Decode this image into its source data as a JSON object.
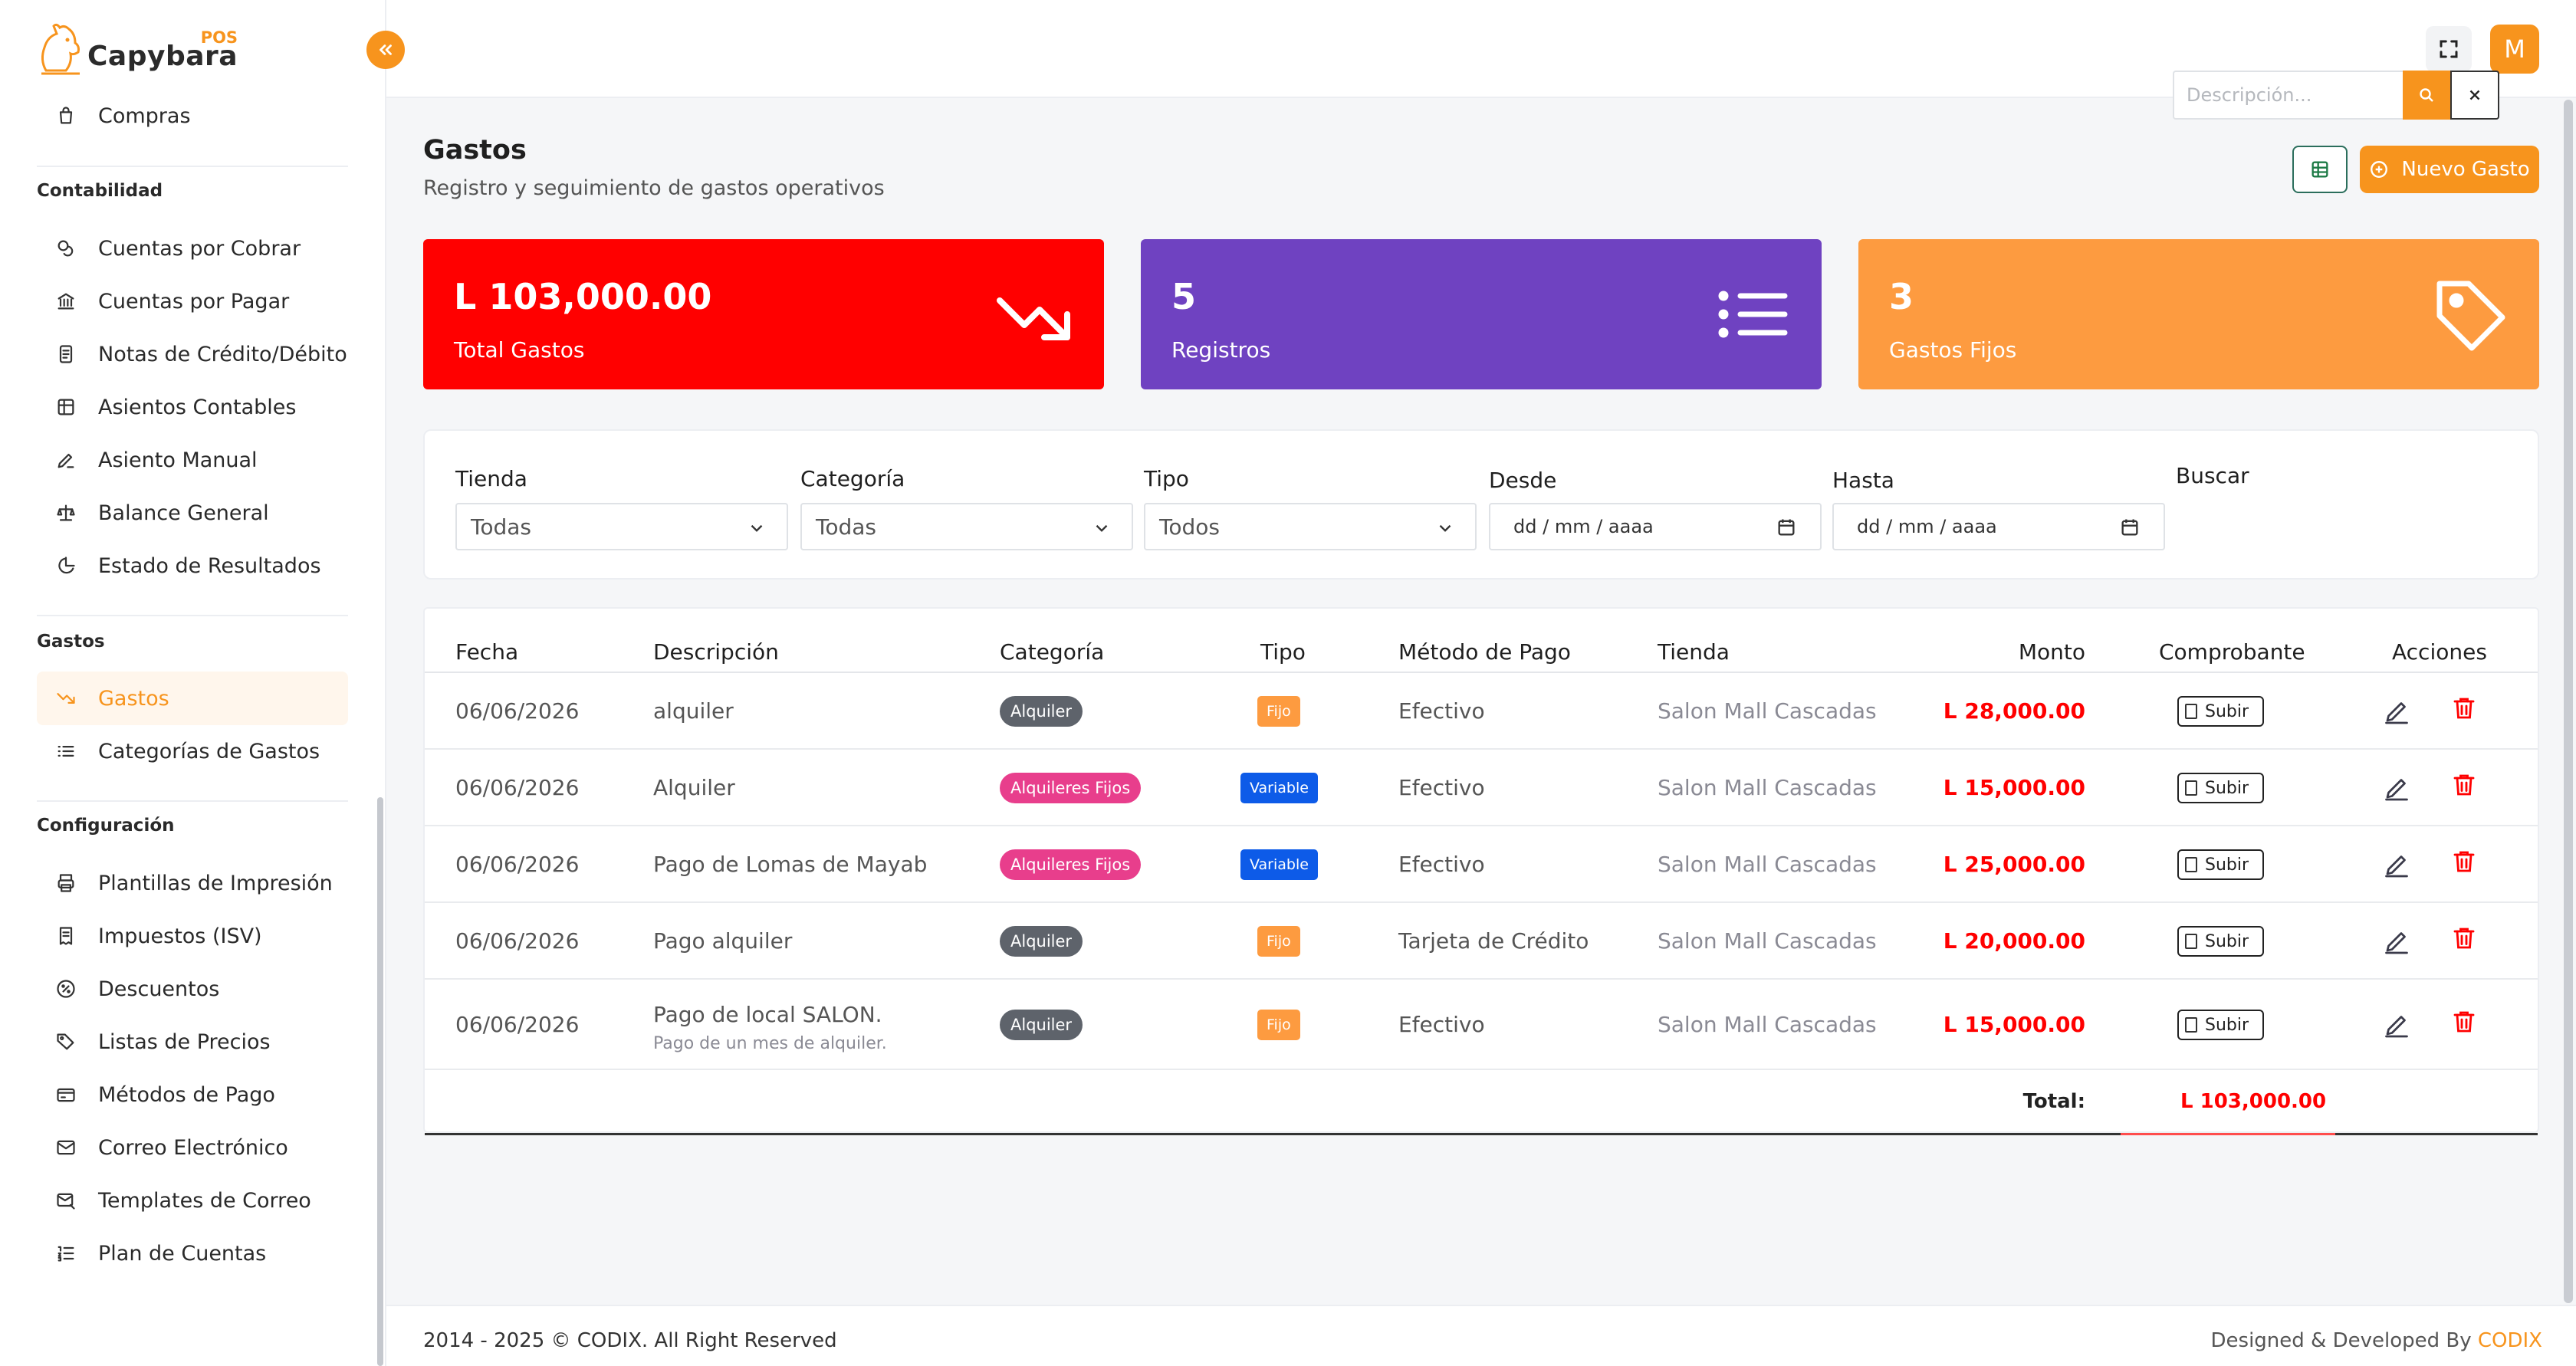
{
  "brand": {
    "pos": "POS",
    "name": "Capybara"
  },
  "sidebar": {
    "items_top": [
      {
        "label": "Compras",
        "icon": "shopping-bag-icon"
      }
    ],
    "sections": [
      {
        "title": "Contabilidad",
        "items": [
          {
            "label": "Cuentas por Cobrar",
            "icon": "coins-icon"
          },
          {
            "label": "Cuentas por Pagar",
            "icon": "bank-icon"
          },
          {
            "label": "Notas de Crédito/Débito",
            "icon": "document-icon"
          },
          {
            "label": "Asientos Contables",
            "icon": "table-icon"
          },
          {
            "label": "Asiento Manual",
            "icon": "pen-icon"
          },
          {
            "label": "Balance General",
            "icon": "scale-icon"
          },
          {
            "label": "Estado de Resultados",
            "icon": "pie-chart-icon"
          }
        ]
      },
      {
        "title": "Gastos",
        "items": [
          {
            "label": "Gastos",
            "icon": "trending-down-icon",
            "active": true
          },
          {
            "label": "Categorías de Gastos",
            "icon": "list-icon"
          }
        ]
      },
      {
        "title": "Configuración",
        "items": [
          {
            "label": "Plantillas de Impresión",
            "icon": "printer-icon"
          },
          {
            "label": "Impuestos (ISV)",
            "icon": "receipt-icon"
          },
          {
            "label": "Descuentos",
            "icon": "percent-icon"
          },
          {
            "label": "Listas de Precios",
            "icon": "tags-icon"
          },
          {
            "label": "Métodos de Pago",
            "icon": "credit-card-icon"
          },
          {
            "label": "Correo Electrónico",
            "icon": "mail-icon"
          },
          {
            "label": "Templates de Correo",
            "icon": "mail-template-icon"
          },
          {
            "label": "Plan de Cuentas",
            "icon": "list-ordered-icon"
          }
        ]
      }
    ]
  },
  "topbar": {
    "avatar_initial": "M"
  },
  "page": {
    "title": "Gastos",
    "subtitle": "Registro y seguimiento de gastos operativos",
    "new_button": "Nuevo Gasto"
  },
  "stats": [
    {
      "value": "L 103,000.00",
      "label": "Total Gastos",
      "color": "#ff0000",
      "icon": "trending-down-icon"
    },
    {
      "value": "5",
      "label": "Registros",
      "color": "#6f42c1",
      "icon": "list-icon"
    },
    {
      "value": "3",
      "label": "Gastos Fijos",
      "color": "#fd9b40",
      "icon": "tag-icon"
    }
  ],
  "filters": {
    "tienda": {
      "label": "Tienda",
      "value": "Todas"
    },
    "categoria": {
      "label": "Categoría",
      "value": "Todas"
    },
    "tipo": {
      "label": "Tipo",
      "value": "Todos"
    },
    "desde": {
      "label": "Desde",
      "value": "dd / mm / aaaa"
    },
    "hasta": {
      "label": "Hasta",
      "value": "dd / mm / aaaa"
    },
    "buscar": {
      "label": "Buscar",
      "placeholder": "Descripción..."
    }
  },
  "table": {
    "headers": [
      "Fecha",
      "Descripción",
      "Categoría",
      "Tipo",
      "Método de Pago",
      "Tienda",
      "Monto",
      "Comprobante",
      "Acciones"
    ],
    "rows": [
      {
        "fecha": "06/06/2026",
        "descripcion": "alquiler",
        "nota": "",
        "categoria": "Alquiler",
        "tipo": "Fijo",
        "metodo": "Efectivo",
        "tienda": "Salon Mall Cascadas",
        "monto": "L 28,000.00",
        "comprobante": "Subir"
      },
      {
        "fecha": "06/06/2026",
        "descripcion": "Alquiler",
        "nota": "",
        "categoria": "Alquileres Fijos",
        "tipo": "Variable",
        "metodo": "Efectivo",
        "tienda": "Salon Mall Cascadas",
        "monto": "L 15,000.00",
        "comprobante": "Subir"
      },
      {
        "fecha": "06/06/2026",
        "descripcion": "Pago de Lomas de Mayab",
        "nota": "",
        "categoria": "Alquileres Fijos",
        "tipo": "Variable",
        "metodo": "Efectivo",
        "tienda": "Salon Mall Cascadas",
        "monto": "L 25,000.00",
        "comprobante": "Subir"
      },
      {
        "fecha": "06/06/2026",
        "descripcion": "Pago alquiler",
        "nota": "",
        "categoria": "Alquiler",
        "tipo": "Fijo",
        "metodo": "Tarjeta de Crédito",
        "tienda": "Salon Mall Cascadas",
        "monto": "L 20,000.00",
        "comprobante": "Subir"
      },
      {
        "fecha": "06/06/2026",
        "descripcion": "Pago de local SALON.",
        "nota": "Pago de un mes de alquiler.",
        "categoria": "Alquiler",
        "tipo": "Fijo",
        "metodo": "Efectivo",
        "tienda": "Salon Mall Cascadas",
        "monto": "L 15,000.00",
        "comprobante": "Subir"
      }
    ],
    "total_label": "Total:",
    "total_value": "L 103,000.00"
  },
  "footer": {
    "copyright": "2014 - 2025 © CODIX. All Right Reserved",
    "designed_by": "Designed & Developed By",
    "brand": "CODIX"
  },
  "colors": {
    "accent": "#f7941d",
    "danger": "#ff0000",
    "purple": "#6f42c1",
    "orange_card": "#fd9b40"
  }
}
